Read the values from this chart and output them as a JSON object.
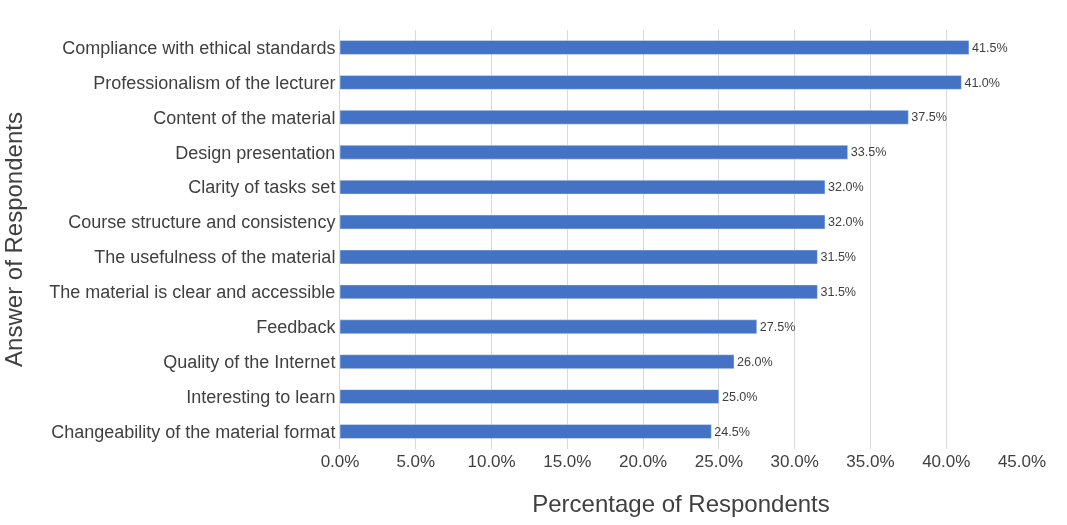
{
  "chart_data": {
    "type": "bar",
    "orientation": "horizontal",
    "ylabel": "Answer of Respondents",
    "xlabel": "Percentage of Respondents",
    "categories": [
      "Compliance with ethical standards",
      "Professionalism of the lecturer",
      "Content of the material",
      "Design presentation",
      "Clarity of tasks set",
      "Course structure and consistency",
      "The usefulness of the material",
      "The material is clear and accessible",
      "Feedback",
      "Quality of the Internet",
      "Interesting to learn",
      "Changeability of the material format"
    ],
    "values": [
      41.5,
      41.0,
      37.5,
      33.5,
      32.0,
      32.0,
      31.5,
      31.5,
      27.5,
      26.0,
      25.0,
      24.5
    ],
    "value_labels": [
      "41.5%",
      "41.0%",
      "37.5%",
      "33.5%",
      "32.0%",
      "32.0%",
      "31.5%",
      "31.5%",
      "27.5%",
      "26.0%",
      "25.0%",
      "24.5%"
    ],
    "color": "#4472c4",
    "xlim": [
      0,
      45
    ],
    "xticks": [
      {
        "value": 0,
        "label": "0.0%"
      },
      {
        "value": 5,
        "label": "5.0%"
      },
      {
        "value": 10,
        "label": "10.0%"
      },
      {
        "value": 15,
        "label": "15.0%"
      },
      {
        "value": 20,
        "label": "20.0%"
      },
      {
        "value": 25,
        "label": "25.0%"
      },
      {
        "value": 30,
        "label": "30.0%"
      },
      {
        "value": 35,
        "label": "35.0%"
      },
      {
        "value": 40,
        "label": "40.0%"
      },
      {
        "value": 45,
        "label": "45.0%"
      }
    ],
    "grid": "x"
  }
}
